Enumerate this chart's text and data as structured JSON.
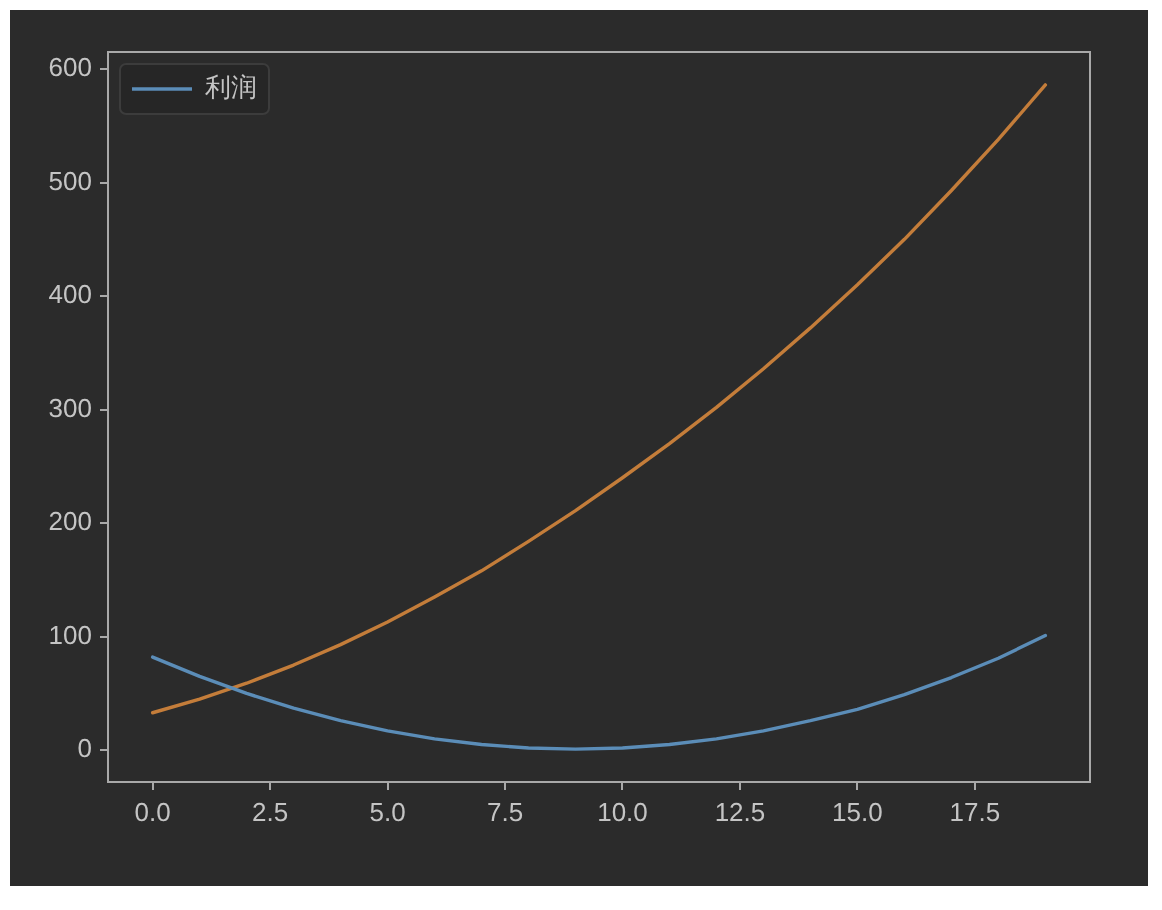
{
  "chart_data": {
    "type": "line",
    "x": [
      0,
      1,
      2,
      3,
      4,
      5,
      6,
      7,
      8,
      9,
      10,
      11,
      12,
      13,
      14,
      15,
      16,
      17,
      18,
      19
    ],
    "series": [
      {
        "name": "利润",
        "color": "#5b8db8",
        "values": [
          82,
          65,
          50,
          37,
          26,
          17,
          10,
          5,
          2,
          1,
          2,
          5,
          10,
          17,
          26,
          36,
          49,
          64,
          81,
          101
        ]
      },
      {
        "color": "#c47d3a",
        "values": [
          33,
          45,
          59,
          75,
          93,
          113,
          135,
          158,
          184,
          211,
          240,
          270,
          302,
          336,
          372,
          410,
          450,
          493,
          538,
          586
        ]
      }
    ],
    "xlim": [
      -0.95,
      19.95
    ],
    "ylim": [
      -28,
      615
    ],
    "xticks": [
      {
        "value": 0,
        "label": "0.0"
      },
      2.5,
      {
        "value": 5,
        "label": "5.0"
      },
      7.5,
      {
        "value": 10,
        "label": "10.0"
      },
      12.5,
      {
        "value": 15,
        "label": "15.0"
      },
      17.5
    ],
    "yticks": [
      0,
      100,
      200,
      300,
      400,
      500,
      600
    ],
    "grid": false,
    "legend": "top left",
    "marker": "none",
    "line_style": "solid"
  }
}
